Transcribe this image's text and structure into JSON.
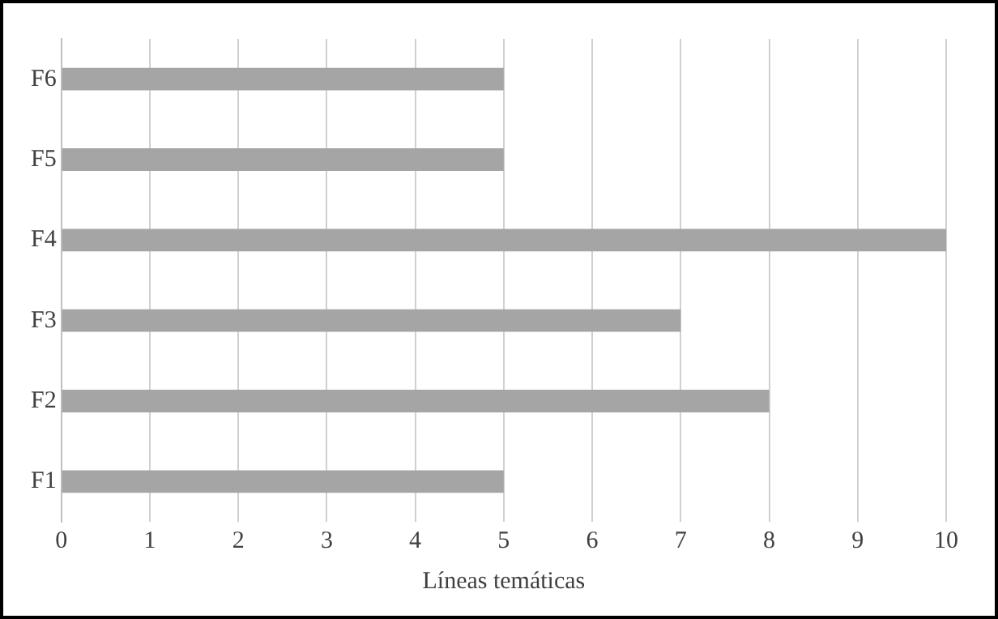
{
  "chart_data": {
    "type": "bar",
    "orientation": "horizontal",
    "xlabel": "Líneas temáticas",
    "categories": [
      "F6",
      "F5",
      "F4",
      "F3",
      "F2",
      "F1"
    ],
    "values": [
      5,
      5,
      10,
      7,
      8,
      5
    ],
    "color": "#a5a5a5",
    "xlim": [
      0,
      10
    ],
    "xticks": [
      0,
      1,
      2,
      3,
      4,
      5,
      6,
      7,
      8,
      9,
      10
    ],
    "grid": "x",
    "legend": false
  }
}
